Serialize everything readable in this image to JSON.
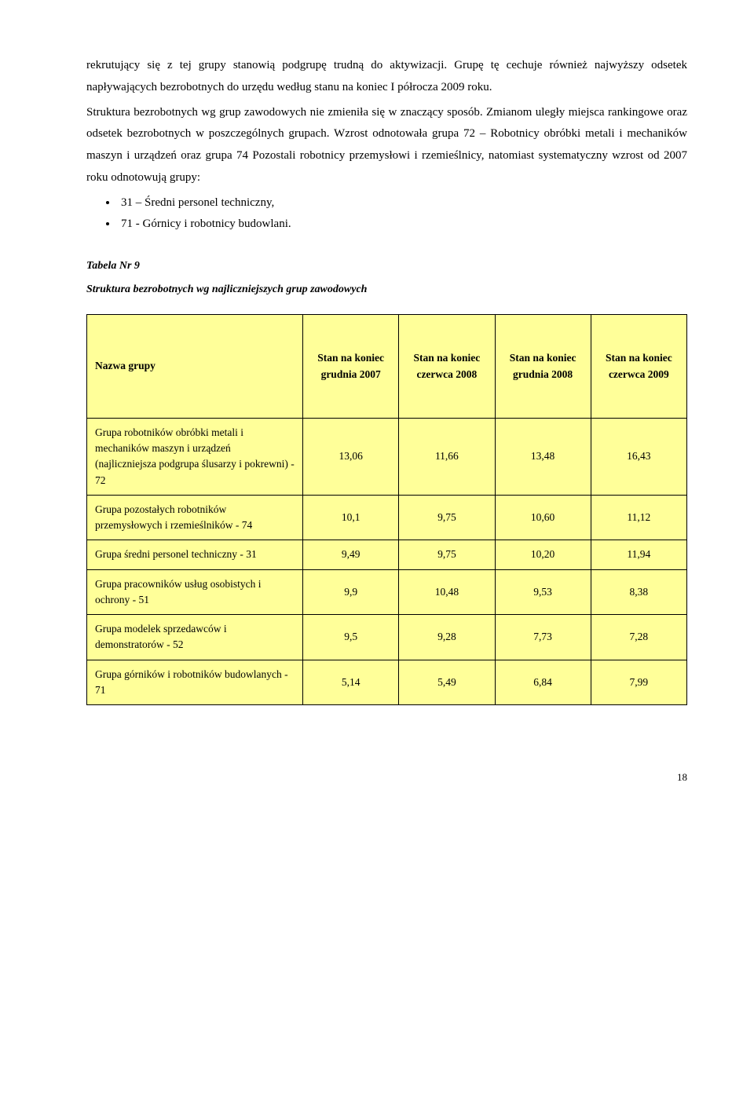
{
  "paragraph": "rekrutujący się z tej grupy stanowią podgrupę trudną do aktywizacji. Grupę tę cechuje również najwyższy odsetek napływających bezrobotnych do urzędu według stanu na koniec I półrocza 2009 roku.",
  "paragraph2_part1": "Struktura bezrobotnych wg grup zawodowych nie zmieniła się w znaczący sposób. Zmianom uległy miejsca rankingowe oraz ",
  "paragraph2_part2": " odsetek bezrobotnych w poszczególnych grupach. Wzrost odnotowała grupa 72 – Robotnicy obróbki metali i mechaników maszyn i urządzeń oraz grupa 74 Pozostali robotnicy przemysłowi i rzemieślnicy,  natomiast systematyczny wzrost od 2007 roku odnotowują grupy:",
  "bullets": [
    "31 – Średni personel techniczny,",
    "71 - Górnicy i robotnicy budowlani."
  ],
  "table_caption": "Tabela Nr 9",
  "table_subcaption": "Struktura bezrobotnych wg najliczniejszych grup zawodowych",
  "columns": {
    "group": "Nazwa grupy",
    "c1a": "Stan  na koniec",
    "c1b": "grudnia 2007",
    "c2a": "Stan na koniec",
    "c2b": "czerwca 2008",
    "c3a": "Stan na koniec",
    "c3b": "grudnia 2008",
    "c4a": "Stan na koniec",
    "c4b": "czerwca 2009"
  },
  "rows": [
    {
      "label": "Grupa robotników obróbki metali i mechaników maszyn i urządzeń (najliczniejsza podgrupa ślusarzy i pokrewni) - 72",
      "v": [
        "13,06",
        "11,66",
        "13,48",
        "16,43"
      ]
    },
    {
      "label": "Grupa pozostałych robotników przemysłowych i rzemieślników - 74",
      "v": [
        "10,1",
        "9,75",
        "10,60",
        "11,12"
      ]
    },
    {
      "label": "Grupa średni personel techniczny - 31",
      "v": [
        "9,49",
        "9,75",
        "10,20",
        "11,94"
      ]
    },
    {
      "label": "Grupa pracowników usług osobistych i ochrony - 51",
      "v": [
        "9,9",
        "10,48",
        "9,53",
        "8,38"
      ]
    },
    {
      "label": "Grupa modelek sprzedawców i demonstratorów - 52",
      "v": [
        "9,5",
        "9,28",
        "7,73",
        "7,28"
      ]
    },
    {
      "label": "Grupa górników i robotników budowlanych - 71",
      "v": [
        "5,14",
        "5,49",
        "6,84",
        "7,99"
      ]
    }
  ],
  "page_number": "18",
  "style": {
    "table_bg": "#ffff99",
    "col_widths": [
      "36%",
      "16%",
      "16%",
      "16%",
      "16%"
    ]
  }
}
